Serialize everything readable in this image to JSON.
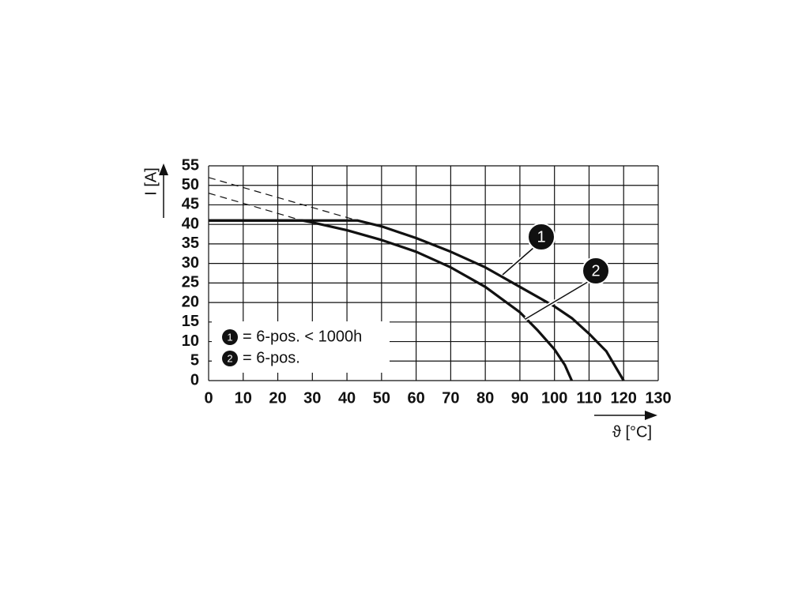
{
  "chart_data": {
    "type": "line",
    "xlabel": "ϑ [°C]",
    "ylabel": "I [A]",
    "xlim": [
      0,
      130
    ],
    "xticks": [
      0,
      10,
      20,
      30,
      40,
      50,
      60,
      70,
      80,
      90,
      100,
      110,
      120,
      130
    ],
    "ylim": [
      0,
      55
    ],
    "yticks": [
      0,
      5,
      10,
      15,
      20,
      25,
      30,
      35,
      40,
      45,
      50,
      55
    ],
    "grid": true,
    "legend": "lower left",
    "series": [
      {
        "name": "= 6-pos. < 1000h",
        "label": "1",
        "color": "#111111",
        "x": [
          0,
          43,
          50,
          60,
          70,
          80,
          90,
          100,
          105,
          110,
          115,
          120
        ],
        "values": [
          41,
          41,
          39.5,
          36.5,
          33,
          29,
          24,
          19,
          16,
          12,
          7.5,
          0
        ],
        "extension": {
          "x": [
            0,
            43
          ],
          "values": [
            52,
            41
          ]
        }
      },
      {
        "name": "= 6-pos.",
        "label": "2",
        "color": "#111111",
        "x": [
          0,
          27,
          30,
          40,
          50,
          60,
          70,
          80,
          90,
          95,
          100,
          103,
          105
        ],
        "values": [
          41,
          41,
          40.5,
          38.5,
          36,
          33,
          29,
          24,
          17.5,
          13,
          8,
          4,
          0
        ],
        "extension": {
          "x": [
            0,
            27
          ],
          "values": [
            48,
            41
          ]
        }
      }
    ]
  }
}
